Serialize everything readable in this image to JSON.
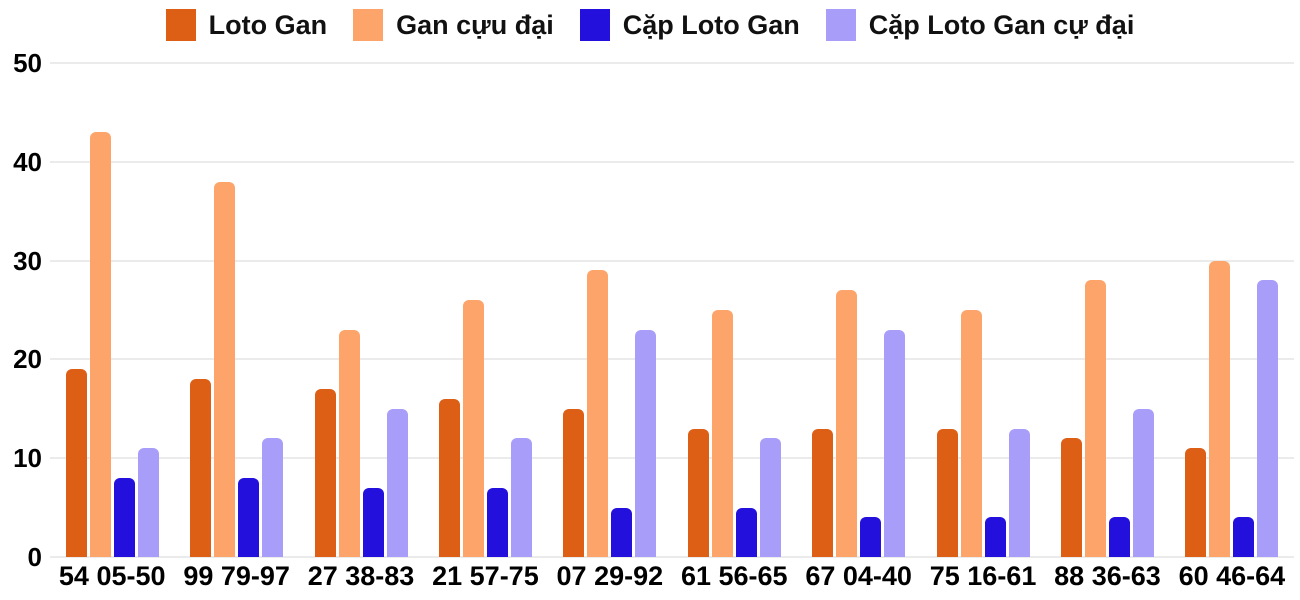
{
  "chart_data": {
    "type": "bar",
    "title": "",
    "xlabel": "",
    "ylabel": "",
    "categories": [
      "54 05-50",
      "99 79-97",
      "27 38-83",
      "21 57-75",
      "07 29-92",
      "61 56-65",
      "67 04-40",
      "75 16-61",
      "88 36-63",
      "60 46-64"
    ],
    "series": [
      {
        "name": "Loto Gan",
        "color": "#dd5f16",
        "values": [
          19,
          18,
          17,
          16,
          15,
          13,
          13,
          13,
          12,
          11
        ]
      },
      {
        "name": "Gan cựu đại",
        "color": "#fda46a",
        "values": [
          43,
          38,
          23,
          26,
          29,
          25,
          27,
          25,
          28,
          30
        ]
      },
      {
        "name": "Cặp Loto Gan",
        "color": "#2310dd",
        "values": [
          8,
          8,
          7,
          7,
          5,
          5,
          4,
          4,
          4,
          4
        ]
      },
      {
        "name": "Cặp Loto Gan cự đại",
        "color": "#a89ef9",
        "values": [
          11,
          12,
          15,
          12,
          23,
          12,
          23,
          13,
          15,
          28
        ]
      }
    ],
    "ylim": [
      0,
      50
    ],
    "yticks": [
      0,
      10,
      20,
      30,
      40,
      50
    ],
    "grid": true,
    "legend_position": "top"
  },
  "colors": {
    "background": "#ffffff",
    "gridline": "#ebebeb",
    "axis_text": "#000000"
  }
}
